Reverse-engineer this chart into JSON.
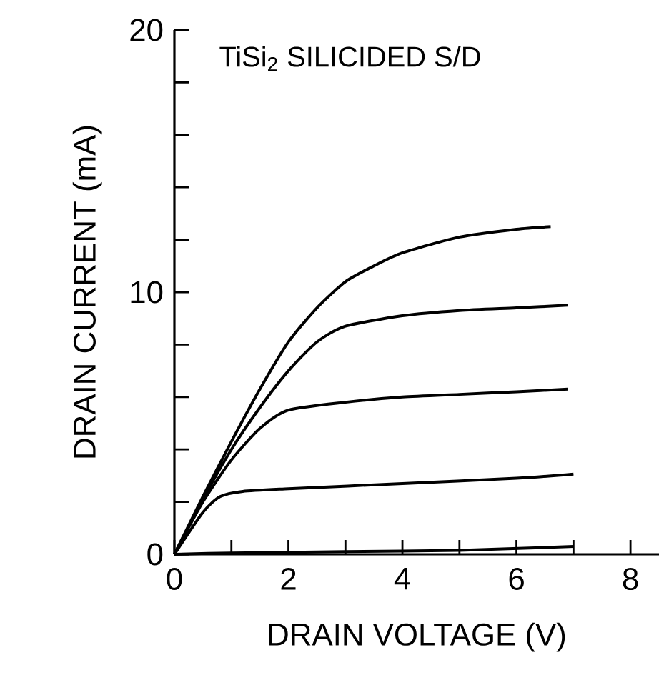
{
  "chart_data": {
    "type": "line",
    "xlabel": "DRAIN VOLTAGE (V)",
    "ylabel": "DRAIN CURRENT (mA)",
    "annotations": [
      "TiSi$_{2}$ SILICIDED S/D"
    ],
    "xlim": [
      0,
      8.5
    ],
    "ylim": [
      0,
      20
    ],
    "xticks": [
      0,
      {
        "value": 1,
        "label": null
      },
      2,
      {
        "value": 3,
        "label": null
      },
      4,
      {
        "value": 5,
        "label": null
      },
      6,
      {
        "value": 7,
        "label": null
      },
      8
    ],
    "yticks": [
      0,
      {
        "value": 2,
        "label": null
      },
      {
        "value": 4,
        "label": null
      },
      {
        "value": 6,
        "label": null
      },
      {
        "value": 8,
        "label": null
      },
      10,
      {
        "value": 12,
        "label": null
      },
      {
        "value": 14,
        "label": null
      },
      {
        "value": 16,
        "label": null
      },
      {
        "value": 18,
        "label": null
      },
      20
    ],
    "series": [
      {
        "color": "#000000",
        "x": [
          0,
          0.5,
          1,
          1.5,
          2,
          2.5,
          3,
          3.5,
          4,
          5,
          6,
          6.6
        ],
        "values": [
          0,
          2.2,
          4.3,
          6.3,
          8.1,
          9.4,
          10.4,
          11.0,
          11.5,
          12.1,
          12.4,
          12.5
        ]
      },
      {
        "color": "#000000",
        "x": [
          0,
          0.5,
          1,
          1.5,
          2,
          2.5,
          3,
          4,
          5,
          6,
          6.9
        ],
        "values": [
          0,
          2.1,
          4.0,
          5.6,
          7.0,
          8.1,
          8.7,
          9.1,
          9.3,
          9.4,
          9.5
        ]
      },
      {
        "color": "#000000",
        "x": [
          0,
          0.5,
          1,
          1.5,
          2,
          3,
          4,
          5,
          6,
          6.9
        ],
        "values": [
          0,
          2.0,
          3.6,
          4.8,
          5.5,
          5.8,
          6.0,
          6.1,
          6.2,
          6.3
        ]
      },
      {
        "color": "#000000",
        "x": [
          0,
          0.5,
          0.8,
          1.2,
          2,
          4,
          6,
          7
        ],
        "values": [
          0,
          1.6,
          2.2,
          2.4,
          2.5,
          2.7,
          2.9,
          3.06
        ]
      },
      {
        "color": "#000000",
        "x": [
          0,
          1,
          3,
          5,
          7
        ],
        "values": [
          0,
          0.05,
          0.1,
          0.15,
          0.3
        ]
      }
    ]
  }
}
